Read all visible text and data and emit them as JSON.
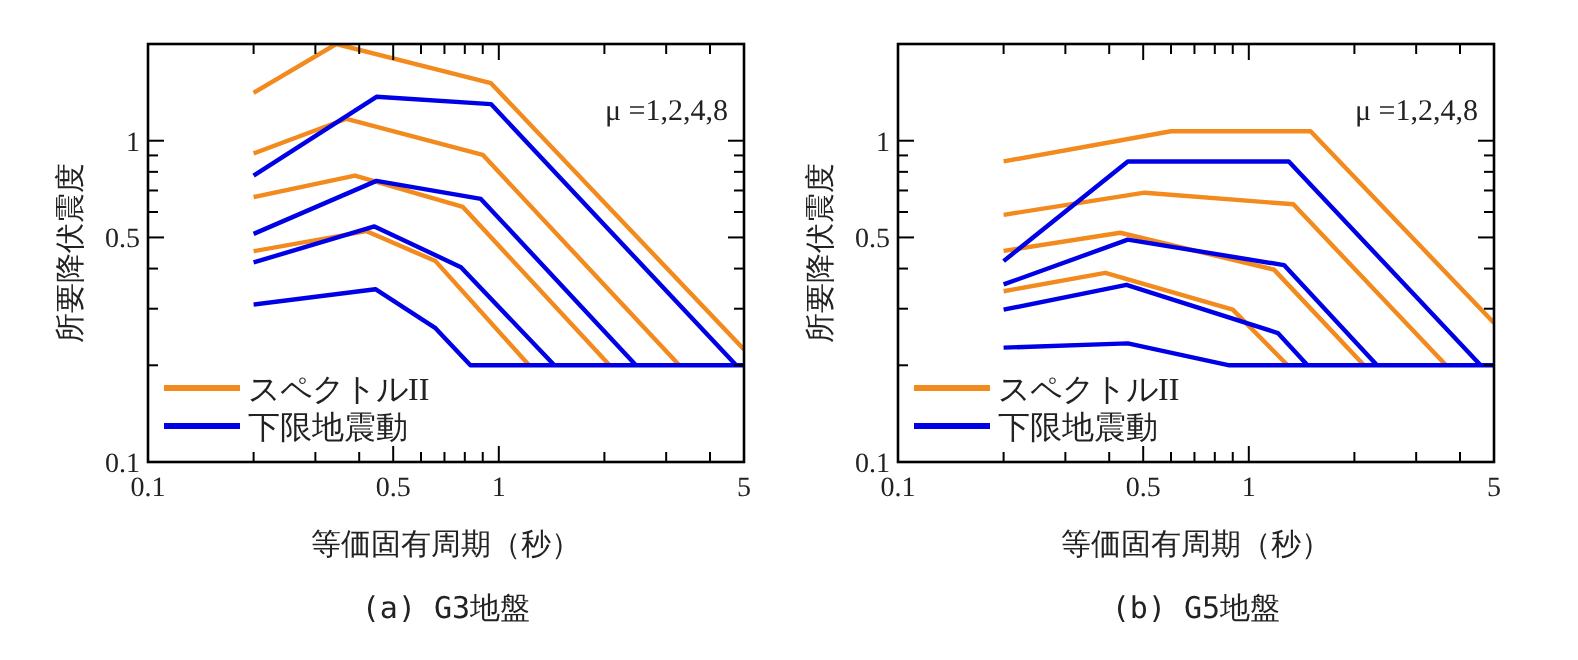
{
  "chart_data": [
    {
      "type": "line",
      "title": "(a) G3地盤",
      "xlabel": "等価固有周期（秒）",
      "ylabel": "所要降伏震度",
      "log": "xy",
      "grid": false,
      "legend": "bottom left",
      "marker": "none",
      "line_style": "solid",
      "annotations": [
        "μ =1,2,4,8"
      ],
      "xlim": [
        0.1,
        5
      ],
      "ylim": [
        0.1,
        2
      ],
      "xticks": [
        0.1,
        {
          "value": 0.2,
          "label": null
        },
        {
          "value": 0.3,
          "label": null
        },
        {
          "value": 0.4,
          "label": null
        },
        0.5,
        {
          "value": 0.6,
          "label": null
        },
        {
          "value": 0.7,
          "label": null
        },
        {
          "value": 0.8,
          "label": null
        },
        {
          "value": 0.9,
          "label": null
        },
        1,
        {
          "value": 2,
          "label": null
        },
        {
          "value": 3,
          "label": null
        },
        {
          "value": 4,
          "label": null
        },
        5
      ],
      "yticks": [
        0.1,
        {
          "value": 0.2,
          "label": null
        },
        {
          "value": 0.3,
          "label": null
        },
        {
          "value": 0.4,
          "label": null
        },
        0.5,
        {
          "value": 0.6,
          "label": null
        },
        {
          "value": 0.7,
          "label": null
        },
        {
          "value": 0.8,
          "label": null
        },
        {
          "value": 0.9,
          "label": null
        },
        1,
        {
          "value": 2,
          "label": null
        }
      ],
      "series": [
        {
          "name": "スペクトルII",
          "color": "#f28a1e",
          "x": [
            0.2,
            0.344,
            0.95,
            5
          ],
          "values": [
            1.41,
            2.0,
            1.51,
            0.224
          ]
        },
        {
          "color": "#f28a1e",
          "x": [
            0.2,
            0.368,
            0.9,
            3.27
          ],
          "values": [
            0.913,
            1.17,
            0.904,
            0.2
          ]
        },
        {
          "color": "#f28a1e",
          "x": [
            0.2,
            0.389,
            0.79,
            2.07
          ],
          "values": [
            0.668,
            0.779,
            0.622,
            0.2
          ]
        },
        {
          "color": "#f28a1e",
          "x": [
            0.2,
            0.42,
            0.66,
            1.22
          ],
          "values": [
            0.453,
            0.523,
            0.422,
            0.2
          ]
        },
        {
          "name": "下限地震動",
          "color": "#0000e6",
          "x": [
            0.2,
            0.448,
            0.95,
            4.75
          ],
          "values": [
            0.779,
            1.37,
            1.3,
            0.2
          ]
        },
        {
          "color": "#0000e6",
          "x": [
            0.2,
            0.448,
            0.889,
            2.46
          ],
          "values": [
            0.513,
            0.75,
            0.659,
            0.2
          ]
        },
        {
          "color": "#0000e6",
          "x": [
            0.2,
            0.442,
            0.78,
            1.44
          ],
          "values": [
            0.418,
            0.541,
            0.404,
            0.2
          ]
        },
        {
          "color": "#0000e6",
          "x": [
            0.2,
            0.445,
            0.66,
            0.83,
            5
          ],
          "values": [
            0.309,
            0.345,
            0.261,
            0.2,
            0.2
          ]
        }
      ]
    },
    {
      "type": "line",
      "title": "(b) G5地盤",
      "xlabel": "等価固有周期（秒）",
      "ylabel": "所要降伏震度",
      "log": "xy",
      "grid": false,
      "legend": "bottom left",
      "marker": "none",
      "line_style": "solid",
      "annotations": [
        "μ =1,2,4,8"
      ],
      "xlim": [
        0.1,
        5
      ],
      "ylim": [
        0.1,
        2
      ],
      "xticks": [
        0.1,
        {
          "value": 0.2,
          "label": null
        },
        {
          "value": 0.3,
          "label": null
        },
        {
          "value": 0.4,
          "label": null
        },
        0.5,
        {
          "value": 0.6,
          "label": null
        },
        {
          "value": 0.7,
          "label": null
        },
        {
          "value": 0.8,
          "label": null
        },
        {
          "value": 0.9,
          "label": null
        },
        1,
        {
          "value": 2,
          "label": null
        },
        {
          "value": 3,
          "label": null
        },
        {
          "value": 4,
          "label": null
        },
        5
      ],
      "yticks": [
        0.1,
        {
          "value": 0.2,
          "label": null
        },
        {
          "value": 0.3,
          "label": null
        },
        {
          "value": 0.4,
          "label": null
        },
        0.5,
        {
          "value": 0.6,
          "label": null
        },
        {
          "value": 0.7,
          "label": null
        },
        {
          "value": 0.8,
          "label": null
        },
        {
          "value": 0.9,
          "label": null
        },
        1,
        {
          "value": 2,
          "label": null
        }
      ],
      "series": [
        {
          "name": "スペクトルII",
          "color": "#f28a1e",
          "x": [
            0.2,
            0.6,
            1.5,
            5
          ],
          "values": [
            0.862,
            1.07,
            1.07,
            0.271
          ]
        },
        {
          "color": "#f28a1e",
          "x": [
            0.2,
            0.505,
            1.34,
            3.65
          ],
          "values": [
            0.588,
            0.689,
            0.634,
            0.2
          ]
        },
        {
          "color": "#f28a1e",
          "x": [
            0.2,
            0.43,
            1.18,
            2.13
          ],
          "values": [
            0.454,
            0.517,
            0.397,
            0.2
          ]
        },
        {
          "color": "#f28a1e",
          "x": [
            0.2,
            0.39,
            0.9,
            1.29
          ],
          "values": [
            0.34,
            0.388,
            0.298,
            0.2
          ]
        },
        {
          "name": "下限地震動",
          "color": "#0000e6",
          "x": [
            0.2,
            0.452,
            1.3,
            4.58
          ],
          "values": [
            0.422,
            0.862,
            0.862,
            0.2
          ]
        },
        {
          "color": "#0000e6",
          "x": [
            0.2,
            0.452,
            1.26,
            2.32
          ],
          "values": [
            0.357,
            0.492,
            0.41,
            0.2
          ]
        },
        {
          "color": "#0000e6",
          "x": [
            0.2,
            0.448,
            1.21,
            1.47
          ],
          "values": [
            0.298,
            0.356,
            0.252,
            0.2
          ]
        },
        {
          "color": "#0000e6",
          "x": [
            0.2,
            0.452,
            0.88,
            5
          ],
          "values": [
            0.227,
            0.234,
            0.2,
            0.2
          ]
        }
      ]
    }
  ]
}
